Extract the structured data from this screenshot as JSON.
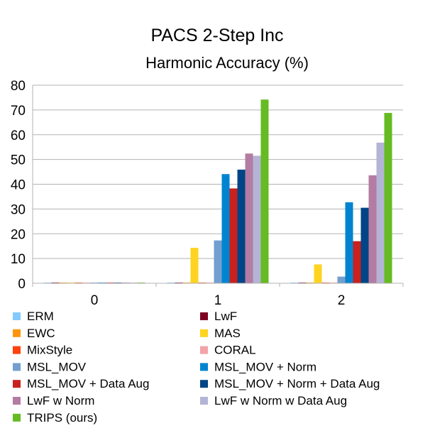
{
  "chart_data": {
    "type": "bar",
    "title": "PACS 2-Step Inc",
    "subtitle": "Harmonic Accuracy (%)",
    "xlabel": "",
    "ylabel": "",
    "categories": [
      "0",
      "1",
      "2"
    ],
    "ylim": [
      0,
      80
    ],
    "yticks": [
      "0",
      "10",
      "20",
      "30",
      "40",
      "50",
      "60",
      "70",
      "80"
    ],
    "grid": true,
    "legend_position": "bottom",
    "series": [
      {
        "name": "ERM",
        "color": "#83caff",
        "values": [
          0,
          0,
          0
        ]
      },
      {
        "name": "LwF",
        "color": "#7e0021",
        "values": [
          0,
          0,
          0
        ]
      },
      {
        "name": "EWC",
        "color": "#ff950e",
        "values": [
          0,
          0,
          0
        ]
      },
      {
        "name": "MAS",
        "color": "#ffd320",
        "values": [
          0,
          14.3,
          7.6
        ]
      },
      {
        "name": "MixStyle",
        "color": "#ff420e",
        "values": [
          0,
          0,
          0
        ]
      },
      {
        "name": "CORAL",
        "color": "#f4a3a8",
        "values": [
          0,
          0,
          0
        ]
      },
      {
        "name": "MSL_MOV",
        "color": "#729fcf",
        "values": [
          0,
          17.3,
          2.7
        ]
      },
      {
        "name": "MSL_MOV + Norm",
        "color": "#0084d1",
        "values": [
          0,
          44.1,
          32.7
        ]
      },
      {
        "name": "MSL_MOV + Data Aug",
        "color": "#c9211e",
        "values": [
          0,
          38.3,
          17.0
        ]
      },
      {
        "name": "MSL_MOV + Norm + Data Aug",
        "color": "#004586",
        "values": [
          0,
          45.9,
          30.5
        ]
      },
      {
        "name": "LwF w Norm",
        "color": "#b47ca2",
        "values": [
          0,
          52.4,
          43.6
        ]
      },
      {
        "name": "LwF w Norm w Data Aug",
        "color": "#b4b4d6",
        "values": [
          0,
          51.5,
          56.8
        ]
      },
      {
        "name": "TRIPS (ours)",
        "color": "#66bb22",
        "values": [
          0,
          74.2,
          68.8
        ]
      }
    ]
  }
}
